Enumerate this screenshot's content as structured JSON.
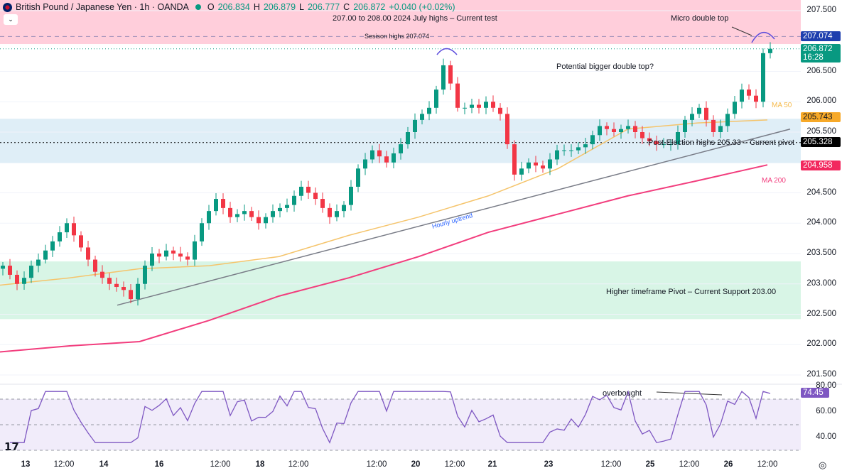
{
  "header": {
    "symbol": "British Pound / Japanese Yen · 1h · OANDA",
    "o_label": "O",
    "o": "206.834",
    "h_label": "H",
    "h": "206.879",
    "l_label": "L",
    "l": "206.777",
    "c_label": "C",
    "c": "206.872",
    "change": "+0.040 (+0.02%)"
  },
  "annotations": {
    "july_highs": "207.00 to 208.00 2024 July highs – Current test",
    "session_highs": "Sesison highs 207.074",
    "micro_double_top": "Micro double top",
    "bigger_double_top": "Potential bigger double top?",
    "ma50": "MA 50",
    "ma200": "MA 200",
    "pivot": "Post-Election highs 205.33 – Current pivot",
    "uptrend": "Hourly uptrend",
    "support": "Higher timeframe Pivot – Current Support 203.00",
    "overbought": "overbought"
  },
  "price_tags": {
    "session_high": "207.074",
    "last": "206.872",
    "countdown": "16:28",
    "ma50": "205.743",
    "pivot": "205.328",
    "ma200": "204.958",
    "rsi": "74.45"
  },
  "colors": {
    "up": "#089981",
    "down": "#f23645",
    "ma50": "#f5c46b",
    "ma200": "#f23d7d",
    "rsi": "#7e57c2",
    "pink_zone": "#ffcedb",
    "blue_zone": "#dfeef7",
    "green_zone": "#d8f5e6"
  },
  "chart_data": {
    "type": "candlestick",
    "price_axis": {
      "ticks": [
        "207.500",
        "206.500",
        "206.000",
        "205.500",
        "204.500",
        "204.000",
        "203.500",
        "203.000",
        "202.500",
        "202.000",
        "201.500"
      ],
      "range": [
        201.5,
        207.5
      ]
    },
    "x_ticks": [
      "13",
      "12:00",
      "14",
      "16",
      "12:00",
      "18",
      "12:00",
      "12:00",
      "20",
      "12:00",
      "21",
      "23",
      "12:00",
      "25",
      "12:00",
      "26",
      "12:00"
    ],
    "x_ticks_bold": [
      true,
      false,
      true,
      true,
      false,
      true,
      false,
      false,
      true,
      false,
      true,
      true,
      false,
      true,
      false,
      true,
      false
    ],
    "closes": [
      203.3,
      203.15,
      203.0,
      203.1,
      203.3,
      203.4,
      203.55,
      203.7,
      203.85,
      204.0,
      203.8,
      203.6,
      203.4,
      203.2,
      203.1,
      203.0,
      202.95,
      202.9,
      202.75,
      203.0,
      203.3,
      203.5,
      203.45,
      203.55,
      203.5,
      203.45,
      203.4,
      203.7,
      204.0,
      204.2,
      204.4,
      204.25,
      204.1,
      204.15,
      204.2,
      204.1,
      204.0,
      204.1,
      204.2,
      204.25,
      204.3,
      204.45,
      204.6,
      204.5,
      204.4,
      204.25,
      204.1,
      204.2,
      204.3,
      204.6,
      204.9,
      205.05,
      205.2,
      205.1,
      205.0,
      205.15,
      205.3,
      205.5,
      205.7,
      205.8,
      205.9,
      206.2,
      206.6,
      206.3,
      205.9,
      205.9,
      205.95,
      205.9,
      206.0,
      205.9,
      205.8,
      205.3,
      204.8,
      204.9,
      205.0,
      204.95,
      204.9,
      205.05,
      205.2,
      205.2,
      205.2,
      205.25,
      205.3,
      205.45,
      205.6,
      205.55,
      205.5,
      205.55,
      205.6,
      205.5,
      205.4,
      205.35,
      205.3,
      205.3,
      205.3,
      205.5,
      205.7,
      205.8,
      205.9,
      205.7,
      205.5,
      205.6,
      205.8,
      206.0,
      206.2,
      206.1,
      206.0,
      206.8,
      206.872
    ],
    "ma50": [
      202.98,
      203.1,
      203.25,
      203.3,
      203.45,
      203.8,
      204.1,
      204.45,
      204.9,
      205.55,
      205.65,
      205.7
    ],
    "ma200": [
      201.88,
      201.98,
      202.05,
      202.4,
      202.8,
      203.1,
      203.45,
      203.85,
      204.15,
      204.45,
      204.7,
      204.96
    ],
    "zones": {
      "july_highs": [
        206.95,
        208.0
      ],
      "pivot": [
        204.99,
        205.72
      ],
      "support": [
        202.42,
        203.37
      ]
    },
    "session_high": 207.074,
    "pivot_level": 205.328,
    "trendline": [
      202.65,
      205.55
    ],
    "rsi": {
      "ticks": [
        "80.00",
        "60.00",
        "40.00"
      ],
      "bands": [
        30,
        50,
        70
      ],
      "last": 74.45
    }
  }
}
